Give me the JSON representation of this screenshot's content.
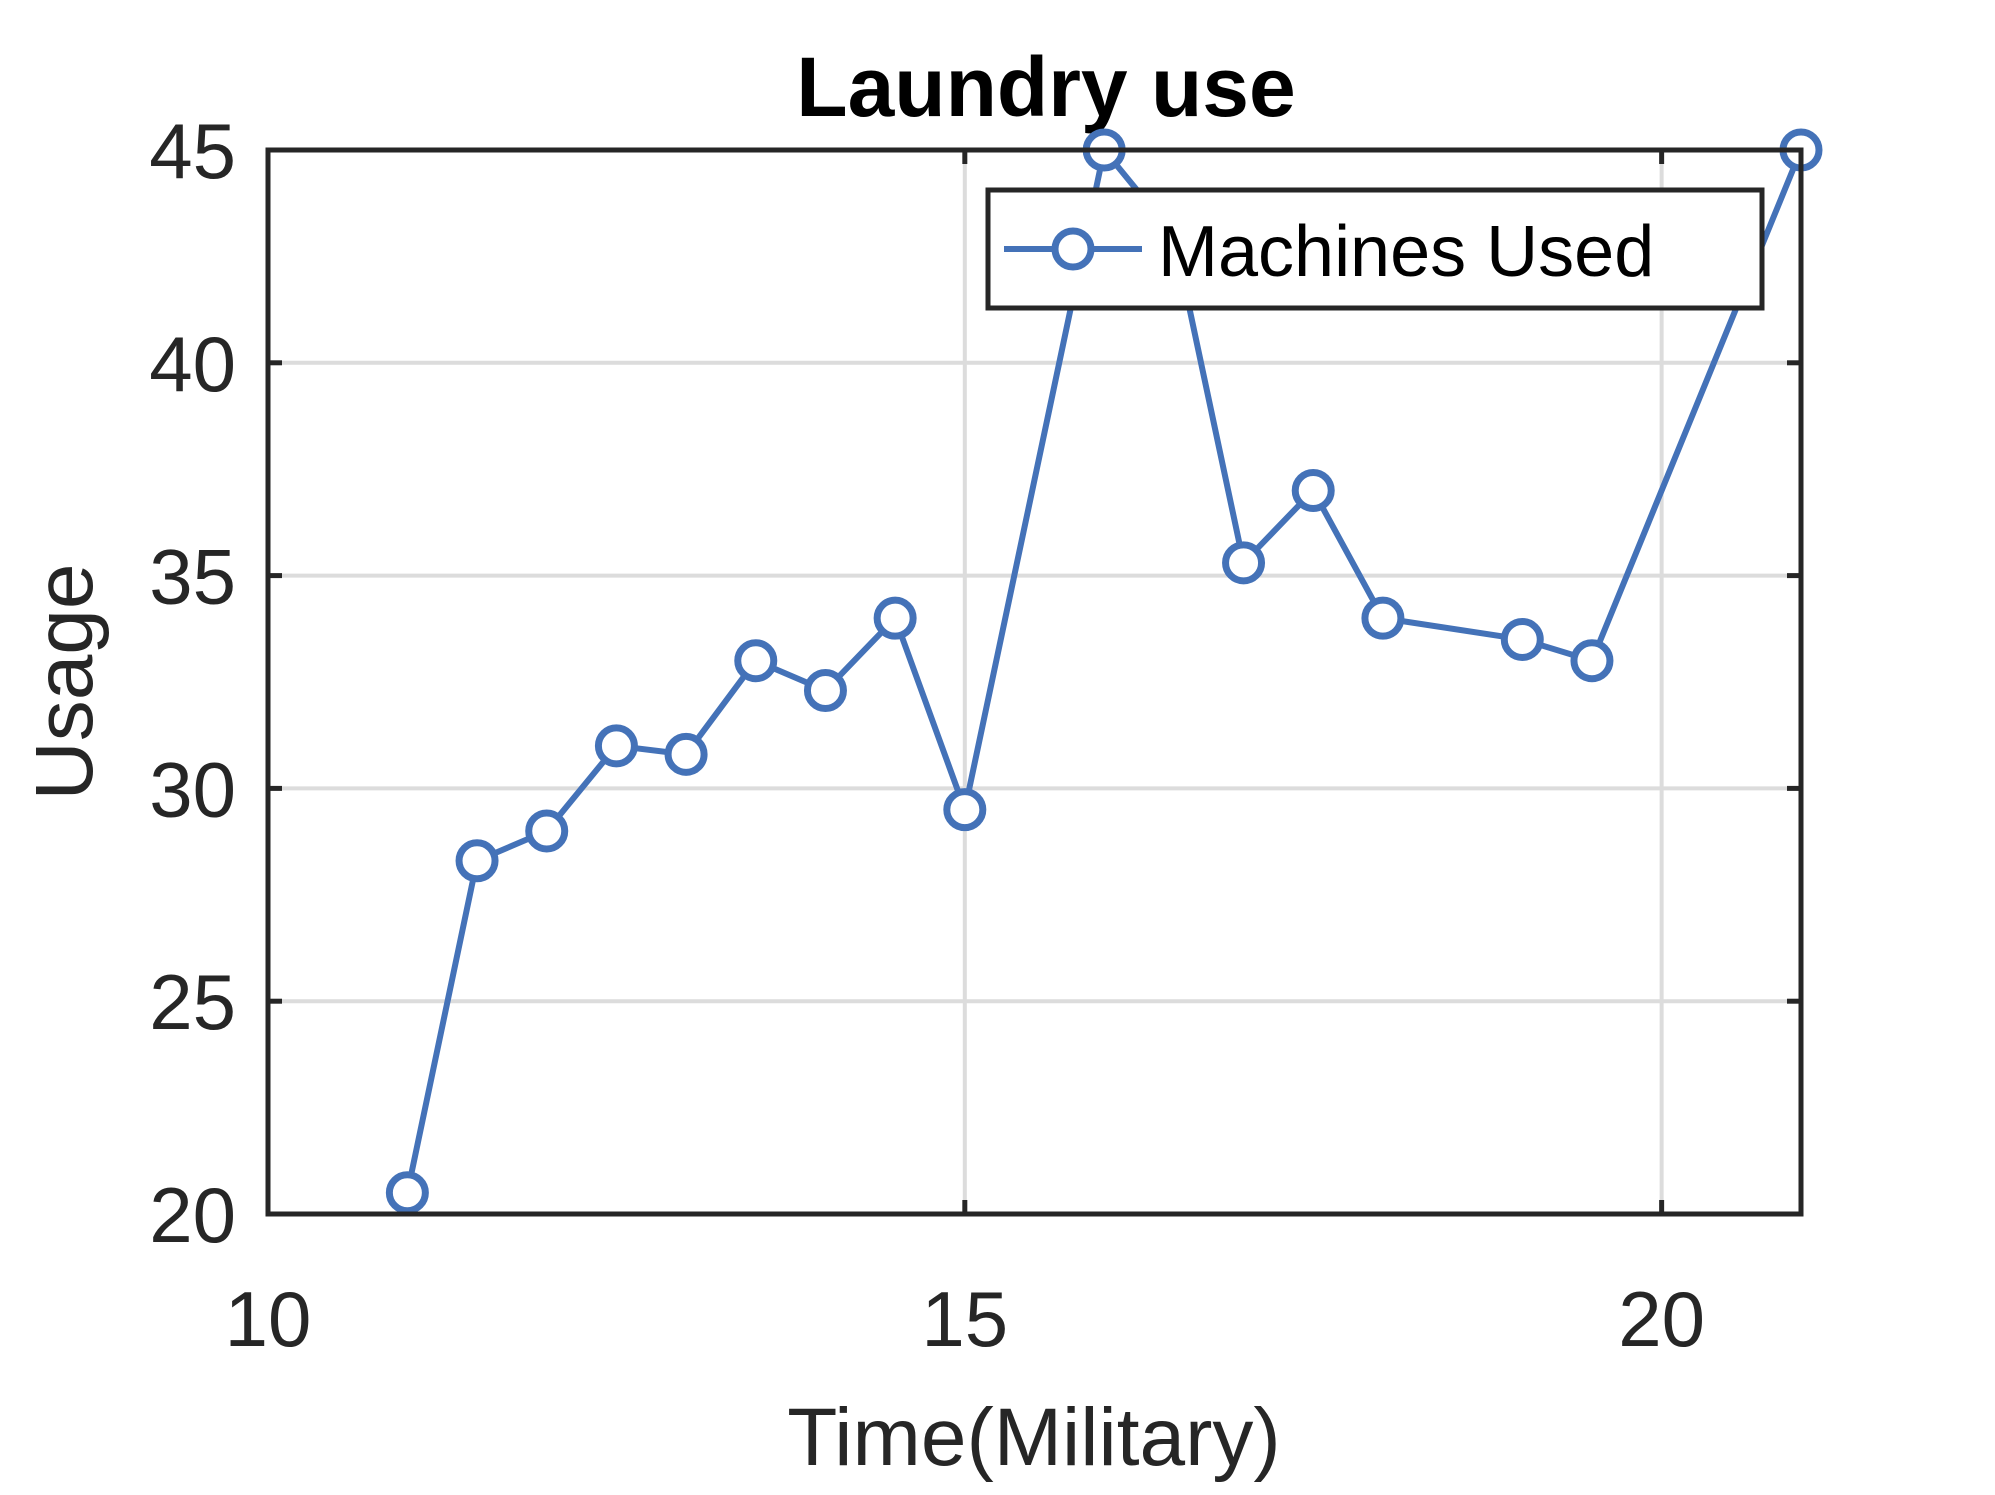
{
  "chart_data": {
    "type": "line",
    "title": "Laundry use",
    "xlabel": "Time(Military)",
    "ylabel": "Usage",
    "xlim": [
      10,
      21.0
    ],
    "ylim": [
      20,
      45
    ],
    "xticks": [
      10,
      15,
      20
    ],
    "yticks": [
      20,
      25,
      30,
      35,
      40,
      45
    ],
    "grid": true,
    "legend_position": "top-right",
    "series": [
      {
        "name": "Machines Used",
        "color": "#4472b8",
        "marker": "circle",
        "x": [
          11.0,
          11.5,
          12.0,
          12.5,
          13.0,
          13.5,
          14.0,
          14.5,
          15.0,
          16.0,
          16.5,
          17.0,
          17.5,
          18.0,
          19.0,
          19.5,
          21.0
        ],
        "y": [
          20.5,
          28.3,
          29.0,
          31.0,
          30.8,
          33.0,
          32.3,
          34.0,
          29.5,
          45.0,
          43.0,
          35.3,
          37.0,
          34.0,
          33.5,
          33.0,
          45.0
        ]
      }
    ]
  }
}
